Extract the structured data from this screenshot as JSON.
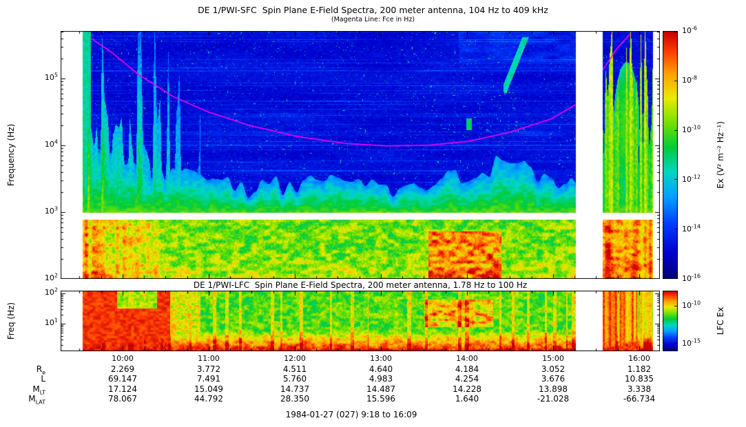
{
  "chart_data": [
    {
      "type": "heatmap",
      "title": "DE 1/PWI-SFC  Spin Plane E-Field Spectra, 200 meter antenna, 104 Hz to 409 kHz",
      "subtitle": "(Magenta Line: Fce in Hz)",
      "ylabel": "Frequency (Hz)",
      "ylim_hz": [
        104,
        409000
      ],
      "xlim_hours": [
        9.3,
        16.24
      ],
      "y_ticks": [
        {
          "base": "10",
          "exp": "5",
          "log10": 5
        },
        {
          "base": "10",
          "exp": "4",
          "log10": 4
        },
        {
          "base": "10",
          "exp": "3",
          "log10": 3
        },
        {
          "base": "10",
          "exp": "2",
          "log10": 2
        }
      ],
      "data_segments_hours": [
        [
          9.536,
          15.264
        ],
        [
          15.576,
          16.156
        ]
      ],
      "blank_band_freq_hz": [
        780,
        980
      ],
      "colorbar": {
        "label": "Ex (V² m⁻² Hz⁻¹)",
        "ticks": [
          {
            "base": "10",
            "exp": "-6",
            "frac": 0
          },
          {
            "base": "10",
            "exp": "-8",
            "frac": 0.2
          },
          {
            "base": "10",
            "exp": "-10",
            "frac": 0.4
          },
          {
            "base": "10",
            "exp": "-12",
            "frac": 0.6
          },
          {
            "base": "10",
            "exp": "-14",
            "frac": 0.8
          },
          {
            "base": "10",
            "exp": "-16",
            "frac": 1
          }
        ]
      },
      "fce_line": {
        "name": "Fce",
        "color": "#ff00ee",
        "points_hour_hz": [
          [
            9.62,
            407000
          ],
          [
            9.86,
            252000
          ],
          [
            10.18,
            115000
          ],
          [
            10.58,
            54000
          ],
          [
            10.98,
            32000
          ],
          [
            11.46,
            20000
          ],
          [
            12.02,
            13600
          ],
          [
            12.58,
            10700
          ],
          [
            13.06,
            9800
          ],
          [
            13.54,
            10000
          ],
          [
            14.02,
            11500
          ],
          [
            14.5,
            15800
          ],
          [
            14.98,
            25000
          ],
          [
            15.26,
            41000
          ],
          [
            15.58,
            139000
          ],
          [
            15.74,
            284000
          ],
          [
            15.9,
            478000
          ]
        ]
      }
    },
    {
      "type": "heatmap",
      "title": "DE 1/PWI-LFC  Spin Plane E-Field Spectra, 200 meter antenna, 1.78 Hz to 100 Hz",
      "ylabel": "Freq (Hz)",
      "ylim_hz": [
        1.78,
        100
      ],
      "y_ticks": [
        {
          "base": "10",
          "exp": "2",
          "log10": 2
        },
        {
          "base": "10",
          "exp": "1",
          "log10": 1
        }
      ],
      "colorbar": {
        "label": "LFC Ex",
        "ticks": [
          {
            "base": "10",
            "exp": "-10",
            "frac": 0.25
          },
          {
            "base": "10",
            "exp": "-15",
            "frac": 0.875
          }
        ]
      }
    }
  ],
  "time_axis": {
    "ticks": [
      {
        "label": "10:00",
        "hour": 10
      },
      {
        "label": "11:00",
        "hour": 11
      },
      {
        "label": "12:00",
        "hour": 12
      },
      {
        "label": "13:00",
        "hour": 13
      },
      {
        "label": "14:00",
        "hour": 14
      },
      {
        "label": "15:00",
        "hour": 15
      },
      {
        "label": "16:00",
        "hour": 16
      }
    ]
  },
  "ephemeris": {
    "rows": [
      {
        "label_main": "R",
        "label_sub": "e",
        "values": [
          "2.269",
          "3.772",
          "4.511",
          "4.640",
          "4.184",
          "3.052",
          "1.182"
        ]
      },
      {
        "label_main": "L",
        "label_sub": "",
        "values": [
          "69.147",
          "7.491",
          "5.760",
          "4.983",
          "4.254",
          "3.676",
          "10.835"
        ]
      },
      {
        "label_main": "M",
        "label_sub": "LT",
        "values": [
          "17.124",
          "15.049",
          "14.737",
          "14.487",
          "14.228",
          "13.898",
          "3.338"
        ]
      },
      {
        "label_main": "M",
        "label_sub": "LAT",
        "values": [
          "78.067",
          "44.792",
          "28.350",
          "15.596",
          "1.640",
          "-21.028",
          "-66.734"
        ]
      }
    ]
  },
  "footer": "1984-01-27 (027) 9:18 to 16:09"
}
